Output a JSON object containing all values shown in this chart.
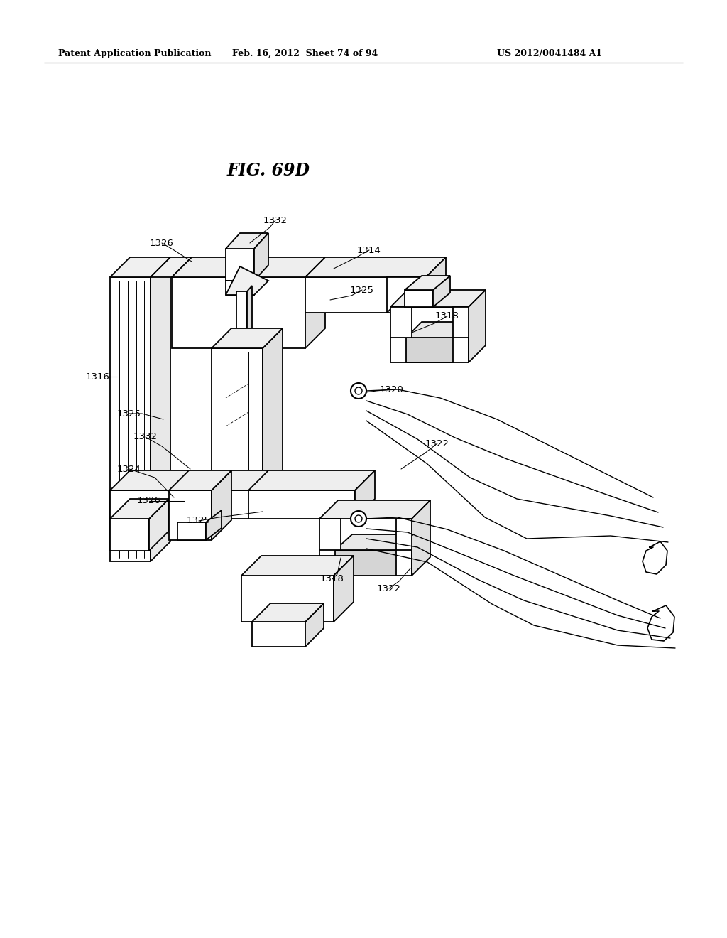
{
  "background_color": "#ffffff",
  "title": "FIG. 69D",
  "header_left": "Patent Application Publication",
  "header_center": "Feb. 16, 2012  Sheet 74 of 94",
  "header_right": "US 2012/0041484 A1",
  "line_color": "#000000",
  "lw_main": 1.3,
  "lw_thin": 0.8,
  "lw_header": 0.8
}
